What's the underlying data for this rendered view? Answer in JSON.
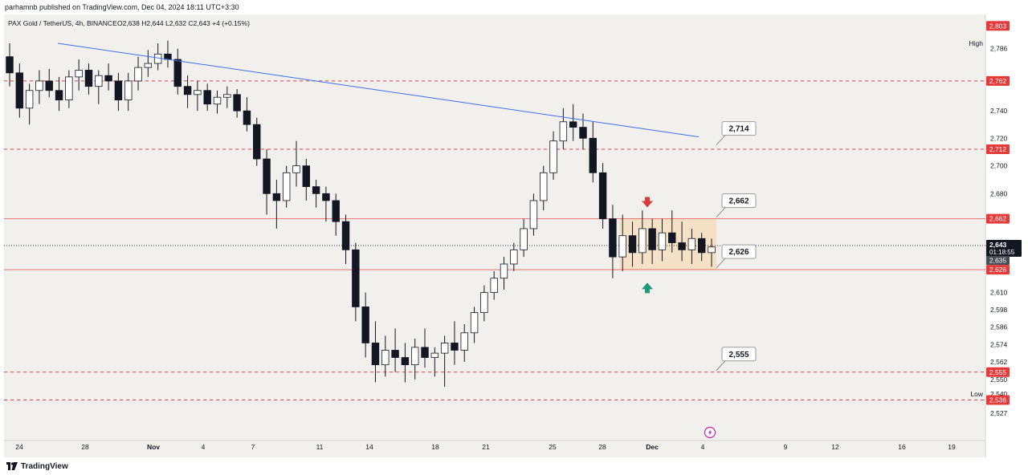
{
  "header": {
    "published": "parhamnb published on TradingView.com, Dec 04, 2024 18:11 UTC+3:30"
  },
  "footer": {
    "brand": "TradingView"
  },
  "colors": {
    "background": "#f2f0ed",
    "candle": "#131722",
    "trendline": "#3a70f0",
    "level_red": "#e53a3a",
    "zone_fill": "#f6deb8",
    "arrow_down": "#d63a3a",
    "arrow_up": "#1e9a7a",
    "lightning": "#c026a8"
  },
  "chart_data": {
    "type": "candlestick",
    "instrument": "PAX Gold / TetherUS, 4h, BINANCE",
    "ohlc_text": "O2,638  H2,644  L2,632  C2,643  +4 (+0.15%)",
    "y_scale": "log",
    "ylim": [
      2520,
      2808
    ],
    "x_tick_labels": [
      "24",
      "28",
      "Nov",
      "4",
      "7",
      "11",
      "14",
      "18",
      "21",
      "25",
      "28",
      "Dec",
      "4",
      "9",
      "12",
      "16",
      "19"
    ],
    "y_tick_labels": [
      "2,786",
      "2,740",
      "2,720",
      "2,700",
      "2,680",
      "2,610",
      "2,598",
      "2,586",
      "2,574",
      "2,562",
      "2,550",
      "2,540",
      "2,527"
    ],
    "high_label": "High",
    "low_label": "Low",
    "price_tags": [
      {
        "label": "2,803",
        "value": 2803,
        "style": "red"
      },
      {
        "label": "2,762",
        "value": 2762,
        "style": "red"
      },
      {
        "label": "2,712",
        "value": 2712,
        "style": "red"
      },
      {
        "label": "2,662",
        "value": 2662,
        "style": "red"
      },
      {
        "label": "2,626",
        "value": 2626,
        "style": "red"
      },
      {
        "label": "2,555",
        "value": 2555,
        "style": "red"
      },
      {
        "label": "2,536",
        "value": 2536,
        "style": "red"
      }
    ],
    "current_price": {
      "label": "2,643",
      "countdown": "01:18:55",
      "value": 2643
    },
    "secondary_tag": {
      "label": "2,635",
      "value": 2635
    },
    "horizontal_levels": [
      {
        "value": 2762,
        "style": "dashed"
      },
      {
        "value": 2712,
        "style": "dashed"
      },
      {
        "value": 2662,
        "style": "solid"
      },
      {
        "value": 2626,
        "style": "solid"
      },
      {
        "value": 2555,
        "style": "dashed"
      },
      {
        "value": 2536,
        "style": "dashed"
      }
    ],
    "callouts": [
      {
        "label": "2,714",
        "value": 2714
      },
      {
        "label": "2,662",
        "value": 2662
      },
      {
        "label": "2,626",
        "value": 2626
      },
      {
        "label": "2,555",
        "value": 2555
      }
    ],
    "zone": {
      "from": 2626,
      "to": 2662
    },
    "trendline": {
      "from": 2790,
      "to": 2721
    },
    "arrows": [
      {
        "direction": "down",
        "price": 2673
      },
      {
        "direction": "up",
        "price": 2614
      }
    ],
    "candles": [
      [
        2780,
        2790,
        2758,
        2768
      ],
      [
        2768,
        2775,
        2735,
        2742
      ],
      [
        2742,
        2760,
        2730,
        2755
      ],
      [
        2755,
        2770,
        2745,
        2762
      ],
      [
        2762,
        2771,
        2750,
        2755
      ],
      [
        2755,
        2765,
        2740,
        2748
      ],
      [
        2748,
        2770,
        2742,
        2765
      ],
      [
        2765,
        2778,
        2755,
        2770
      ],
      [
        2770,
        2775,
        2752,
        2758
      ],
      [
        2758,
        2770,
        2745,
        2766
      ],
      [
        2766,
        2775,
        2755,
        2762
      ],
      [
        2762,
        2768,
        2740,
        2748
      ],
      [
        2748,
        2768,
        2740,
        2762
      ],
      [
        2762,
        2780,
        2755,
        2772
      ],
      [
        2772,
        2785,
        2765,
        2775
      ],
      [
        2775,
        2790,
        2770,
        2782
      ],
      [
        2782,
        2792,
        2772,
        2778
      ],
      [
        2778,
        2786,
        2752,
        2758
      ],
      [
        2758,
        2766,
        2742,
        2752
      ],
      [
        2752,
        2762,
        2740,
        2755
      ],
      [
        2755,
        2760,
        2740,
        2745
      ],
      [
        2745,
        2755,
        2738,
        2750
      ],
      [
        2750,
        2758,
        2742,
        2752
      ],
      [
        2752,
        2756,
        2735,
        2740
      ],
      [
        2740,
        2750,
        2725,
        2730
      ],
      [
        2730,
        2735,
        2700,
        2705
      ],
      [
        2705,
        2712,
        2665,
        2680
      ],
      [
        2680,
        2690,
        2655,
        2675
      ],
      [
        2675,
        2700,
        2670,
        2695
      ],
      [
        2695,
        2718,
        2685,
        2700
      ],
      [
        2700,
        2705,
        2675,
        2685
      ],
      [
        2685,
        2690,
        2670,
        2680
      ],
      [
        2680,
        2685,
        2660,
        2675
      ],
      [
        2675,
        2680,
        2650,
        2660
      ],
      [
        2660,
        2665,
        2630,
        2640
      ],
      [
        2640,
        2645,
        2590,
        2600
      ],
      [
        2600,
        2610,
        2565,
        2575
      ],
      [
        2575,
        2590,
        2548,
        2560
      ],
      [
        2560,
        2580,
        2552,
        2570
      ],
      [
        2570,
        2585,
        2555,
        2565
      ],
      [
        2565,
        2575,
        2548,
        2560
      ],
      [
        2560,
        2578,
        2550,
        2572
      ],
      [
        2572,
        2585,
        2558,
        2565
      ],
      [
        2565,
        2572,
        2552,
        2568
      ],
      [
        2568,
        2580,
        2545,
        2575
      ],
      [
        2575,
        2590,
        2560,
        2570
      ],
      [
        2570,
        2588,
        2562,
        2582
      ],
      [
        2582,
        2600,
        2575,
        2596
      ],
      [
        2596,
        2615,
        2590,
        2610
      ],
      [
        2610,
        2625,
        2605,
        2620
      ],
      [
        2620,
        2635,
        2612,
        2630
      ],
      [
        2630,
        2645,
        2625,
        2640
      ],
      [
        2640,
        2662,
        2635,
        2655
      ],
      [
        2655,
        2680,
        2650,
        2675
      ],
      [
        2675,
        2700,
        2668,
        2695
      ],
      [
        2695,
        2725,
        2690,
        2718
      ],
      [
        2718,
        2742,
        2712,
        2732
      ],
      [
        2732,
        2745,
        2718,
        2728
      ],
      [
        2728,
        2738,
        2712,
        2720
      ],
      [
        2720,
        2732,
        2688,
        2695
      ],
      [
        2695,
        2702,
        2655,
        2662
      ],
      [
        2662,
        2672,
        2620,
        2635
      ],
      [
        2635,
        2665,
        2625,
        2650
      ],
      [
        2650,
        2660,
        2628,
        2638
      ],
      [
        2638,
        2668,
        2630,
        2655
      ],
      [
        2655,
        2662,
        2630,
        2640
      ],
      [
        2640,
        2662,
        2632,
        2652
      ],
      [
        2652,
        2668,
        2638,
        2645
      ],
      [
        2645,
        2660,
        2632,
        2640
      ],
      [
        2640,
        2655,
        2630,
        2648
      ],
      [
        2648,
        2652,
        2632,
        2638
      ],
      [
        2638,
        2648,
        2628,
        2642
      ]
    ]
  }
}
